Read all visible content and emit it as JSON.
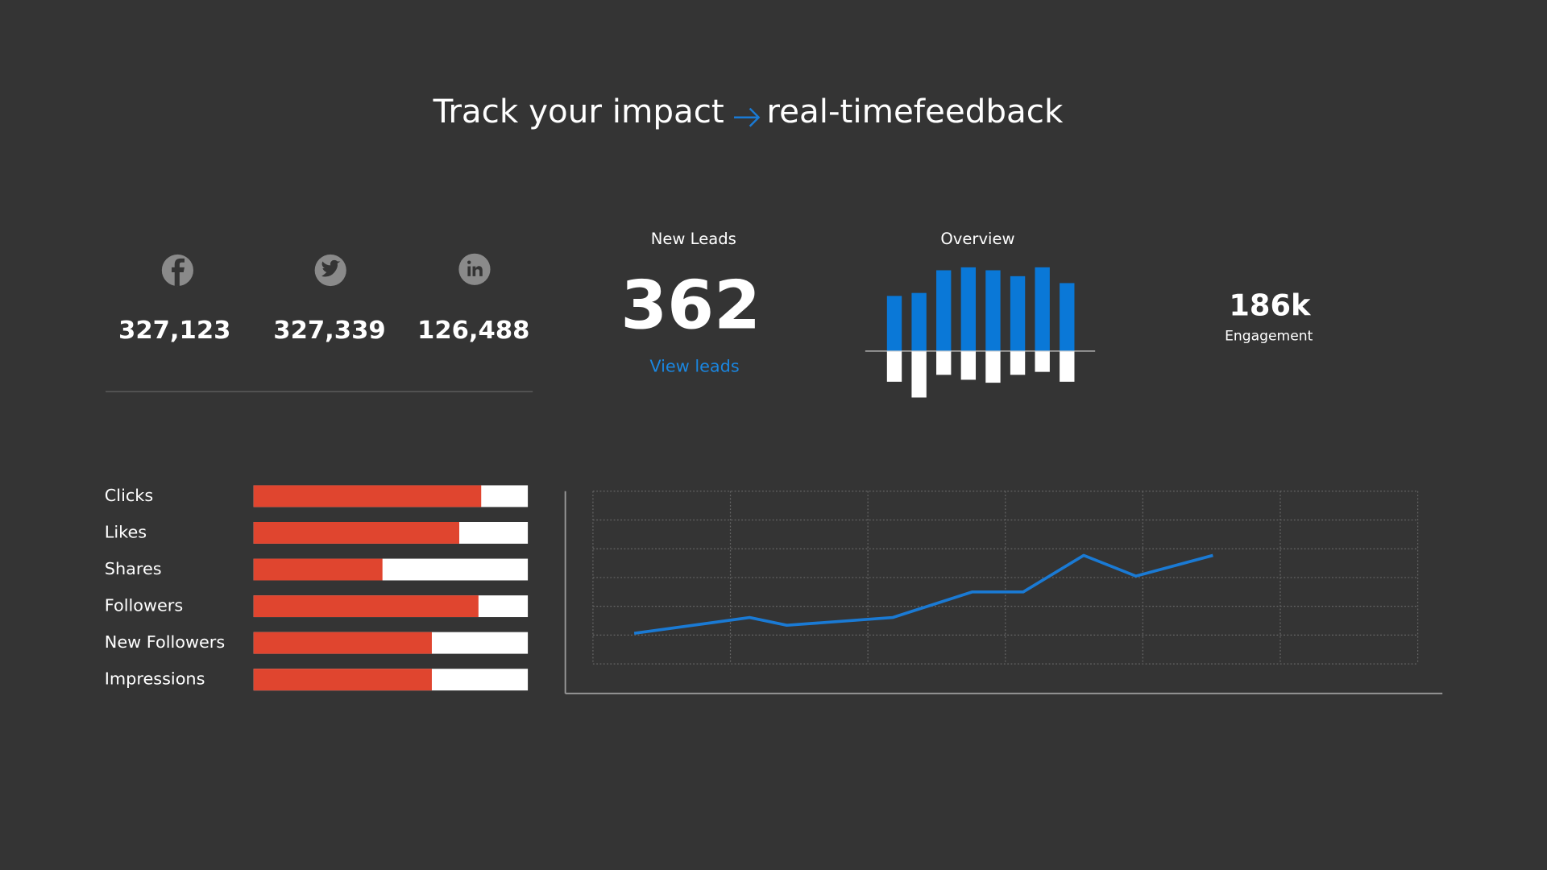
{
  "header": {
    "title_start": "Track your impact",
    "title_end": "real-timefeedback"
  },
  "social": [
    {
      "network": "facebook",
      "value": "327,123"
    },
    {
      "network": "twitter",
      "value": "327,339"
    },
    {
      "network": "linkedin",
      "value": "126,488"
    }
  ],
  "leads": {
    "label": "New Leads",
    "value": "362",
    "link": "View leads"
  },
  "engagement": {
    "value": "186k",
    "label": "Engagement"
  },
  "chart_data": [
    {
      "type": "bar",
      "title": "Overview",
      "series": [
        {
          "color": "#0a78d7",
          "values": [
            56,
            59,
            82,
            85,
            82,
            76,
            85,
            69
          ]
        },
        {
          "color": "#ffffff",
          "values": [
            -31,
            -47,
            -24,
            -29,
            -32,
            -24,
            -21,
            -31
          ]
        }
      ],
      "ylim": [
        -50,
        90
      ]
    },
    {
      "type": "hbar",
      "categories": [
        "Clicks",
        "Likes",
        "Shares",
        "Followers",
        "New Followers",
        "Impressions"
      ],
      "values": [
        83,
        75,
        47,
        82,
        65,
        65
      ],
      "color": "#e0452f",
      "track_color": "#ffffff",
      "xlim": [
        0,
        100
      ]
    },
    {
      "type": "line",
      "x": [
        0.3,
        1.14,
        1.41,
        2.18,
        2.76,
        3.13,
        3.57,
        3.95,
        4.51
      ],
      "values": [
        1.06,
        1.61,
        1.34,
        1.61,
        2.5,
        2.5,
        3.77,
        3.05,
        3.77
      ],
      "color": "#1a7ad4",
      "xlim": [
        0,
        6
      ],
      "ylim": [
        0,
        6
      ],
      "xticks": [
        0,
        1,
        2,
        3,
        4,
        5,
        6
      ],
      "yticks": [
        0,
        1,
        2,
        3,
        4,
        5,
        6
      ],
      "grid": true
    }
  ]
}
